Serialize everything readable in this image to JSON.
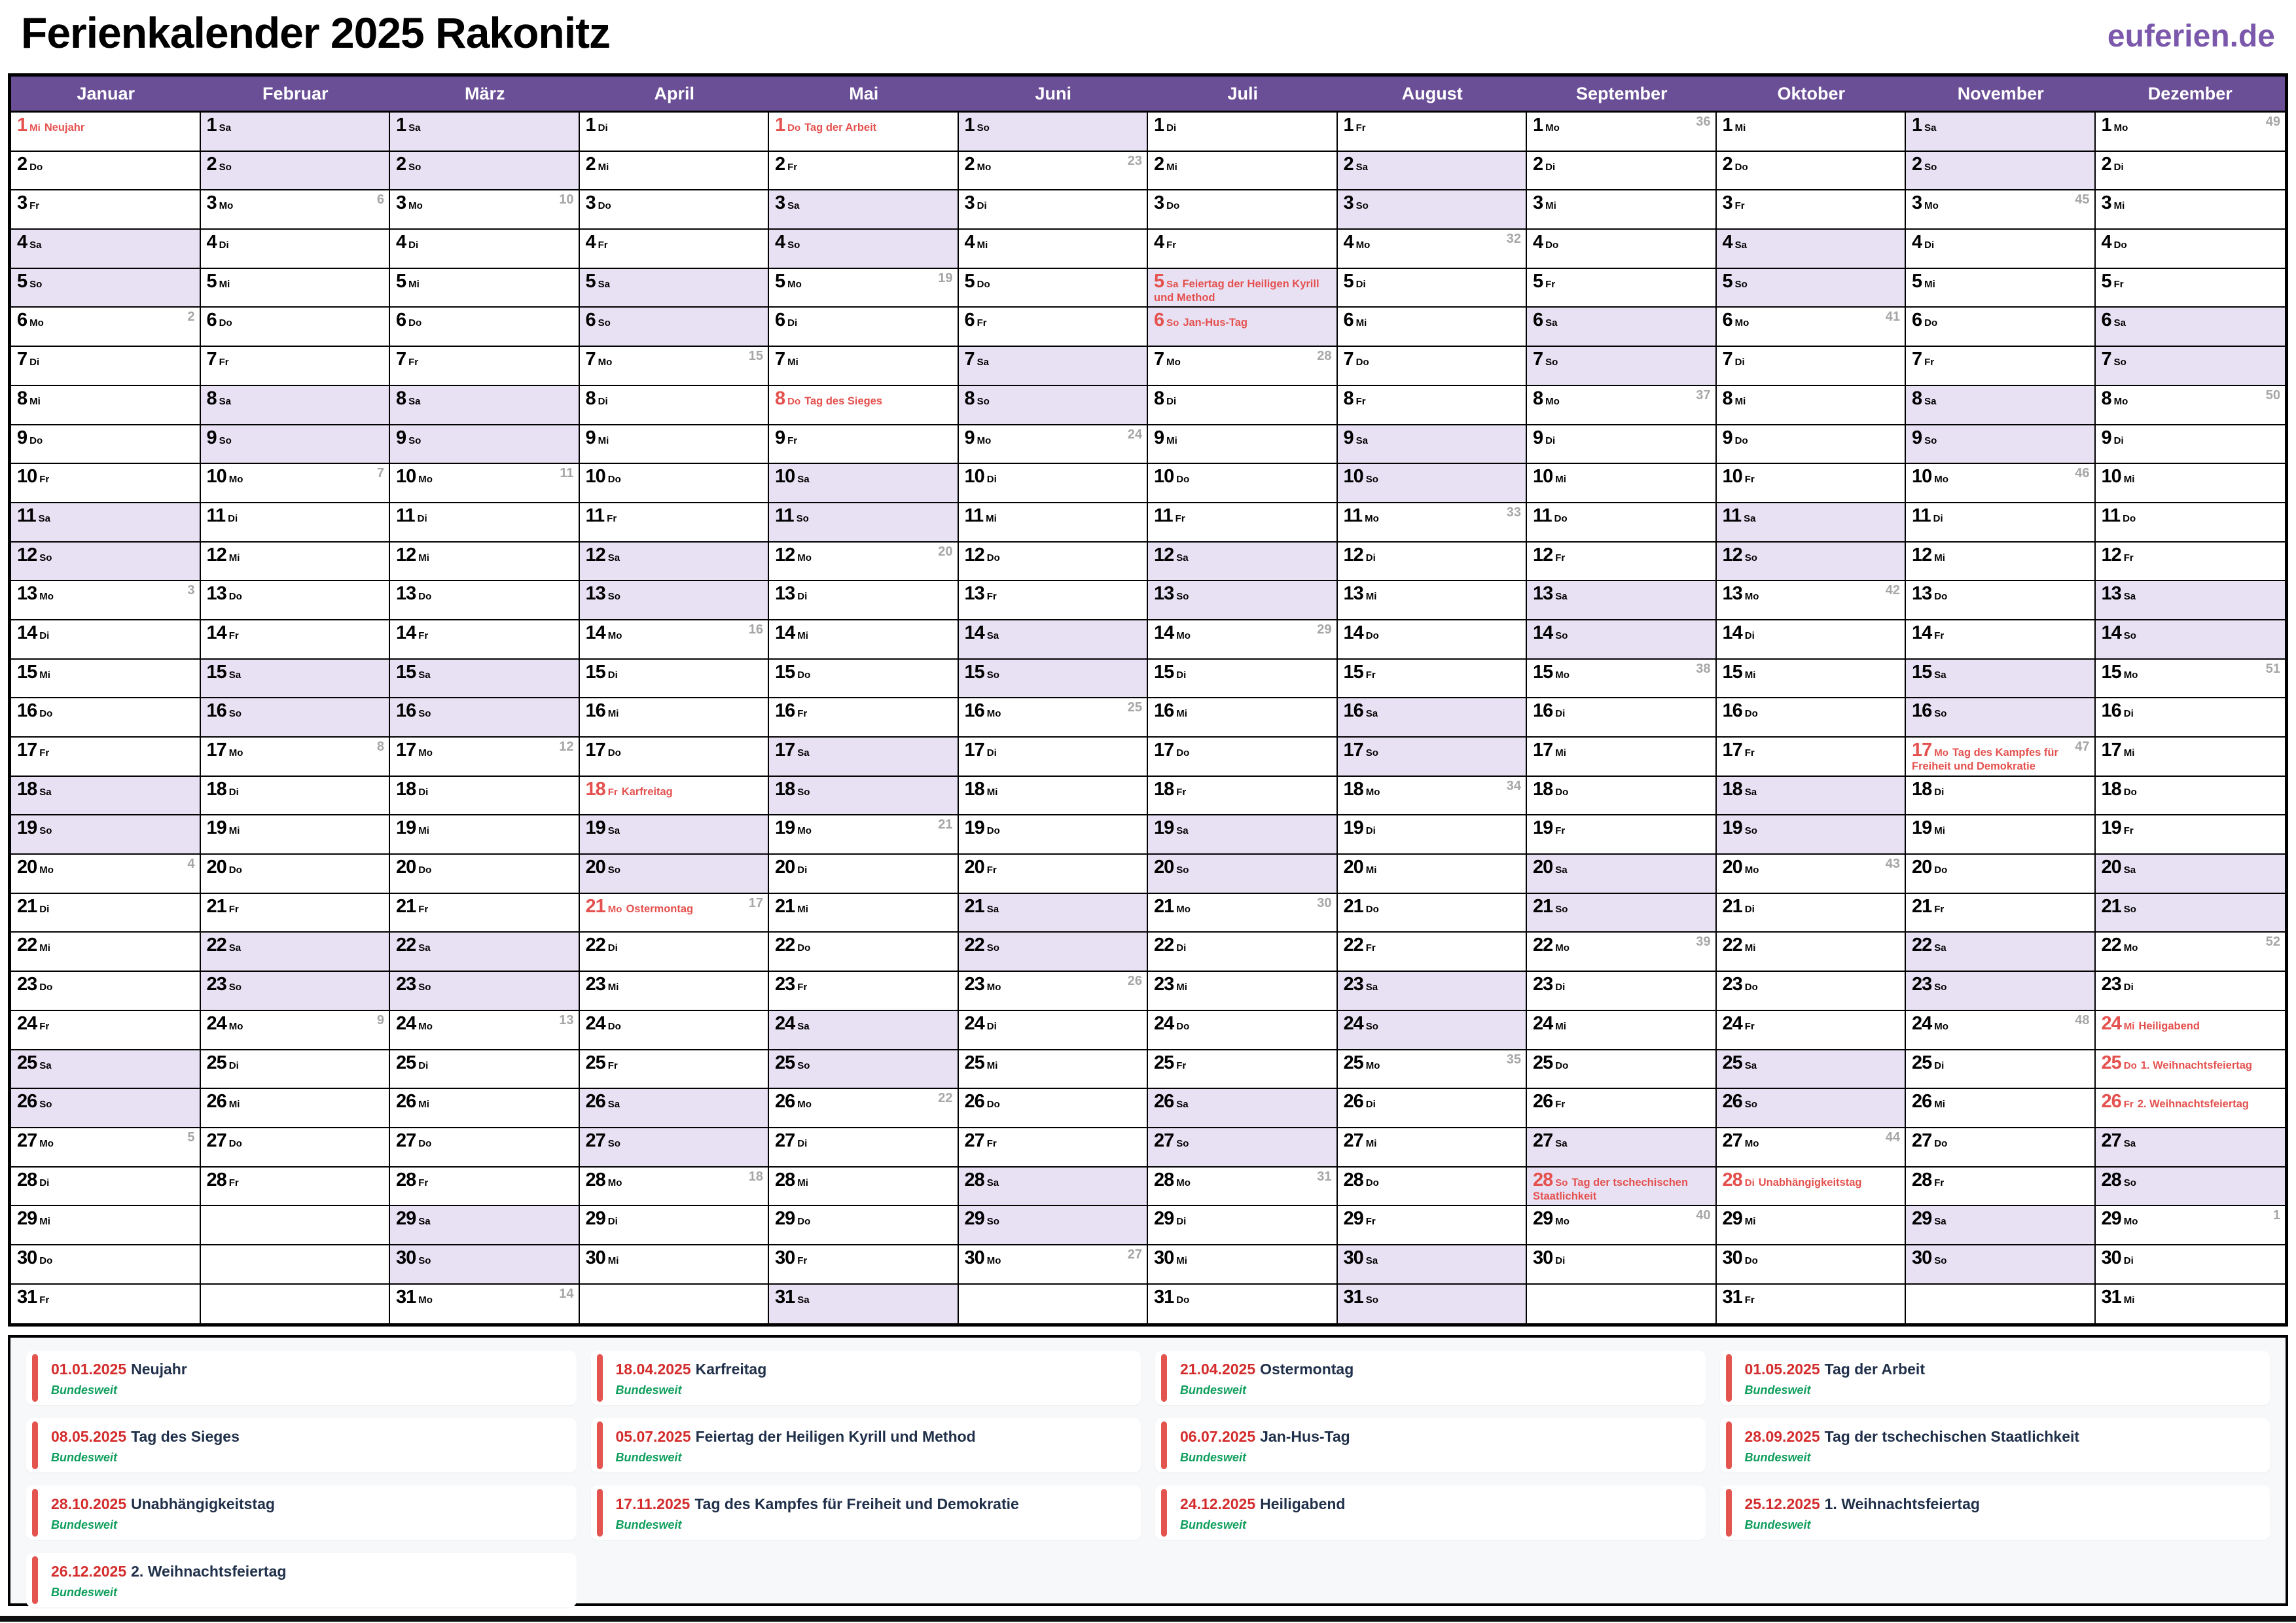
{
  "page": {
    "title": "Ferienkalender 2025 Rakonitz",
    "brand": "euferien.de"
  },
  "colors": {
    "header_purple": "#6a4e96",
    "weekend_lavender": "#e8e1f4",
    "holiday_red": "#e4514e",
    "legend_date_red": "#d42c2c",
    "legend_name_navy": "#20304a",
    "scope_green": "#0e9e5c",
    "brand_purple": "#7b58ac",
    "week_number_gray": "#a6a6a6",
    "legend_panel_gray": "#f7f8fa"
  },
  "weekday_abbr": [
    "Mo",
    "Di",
    "Mi",
    "Do",
    "Fr",
    "Sa",
    "So"
  ],
  "months": [
    {
      "name": "Januar",
      "days": 31,
      "start": 2,
      "weeks": {
        "6": "2",
        "13": "3",
        "20": "4",
        "27": "5"
      },
      "holidays": {
        "1": "Neujahr"
      }
    },
    {
      "name": "Februar",
      "days": 28,
      "start": 5,
      "weeks": {
        "3": "6",
        "10": "7",
        "17": "8",
        "24": "9"
      },
      "holidays": {}
    },
    {
      "name": "März",
      "days": 31,
      "start": 5,
      "weeks": {
        "3": "10",
        "10": "11",
        "17": "12",
        "24": "13",
        "31": "14"
      },
      "holidays": {}
    },
    {
      "name": "April",
      "days": 30,
      "start": 1,
      "weeks": {
        "7": "15",
        "14": "16",
        "21": "17",
        "28": "18"
      },
      "holidays": {
        "18": "Karfreitag",
        "21": "Ostermontag"
      }
    },
    {
      "name": "Mai",
      "days": 31,
      "start": 3,
      "weeks": {
        "5": "19",
        "12": "20",
        "19": "21",
        "26": "22"
      },
      "holidays": {
        "1": "Tag der Arbeit",
        "8": "Tag des Sieges"
      }
    },
    {
      "name": "Juni",
      "days": 30,
      "start": 6,
      "weeks": {
        "2": "23",
        "9": "24",
        "16": "25",
        "23": "26",
        "30": "27"
      },
      "holidays": {}
    },
    {
      "name": "Juli",
      "days": 31,
      "start": 1,
      "weeks": {
        "7": "28",
        "14": "29",
        "21": "30",
        "28": "31"
      },
      "holidays": {
        "5": "Feiertag der Heiligen Kyrill und Method",
        "6": "Jan-Hus-Tag"
      }
    },
    {
      "name": "August",
      "days": 31,
      "start": 4,
      "weeks": {
        "4": "32",
        "11": "33",
        "18": "34",
        "25": "35"
      },
      "holidays": {}
    },
    {
      "name": "September",
      "days": 30,
      "start": 0,
      "weeks": {
        "1": "36",
        "8": "37",
        "15": "38",
        "22": "39",
        "29": "40"
      },
      "holidays": {
        "28": "Tag der tschechischen Staatlichkeit"
      }
    },
    {
      "name": "Oktober",
      "days": 31,
      "start": 2,
      "weeks": {
        "6": "41",
        "13": "42",
        "20": "43",
        "27": "44"
      },
      "holidays": {
        "28": "Unabhängigkeitstag"
      }
    },
    {
      "name": "November",
      "days": 30,
      "start": 5,
      "weeks": {
        "3": "45",
        "10": "46",
        "17": "47",
        "24": "48"
      },
      "holidays": {
        "17": "Tag des Kampfes für Freiheit und Demokratie"
      }
    },
    {
      "name": "Dezember",
      "days": 31,
      "start": 0,
      "weeks": {
        "1": "49",
        "8": "50",
        "15": "51",
        "22": "52",
        "29": "1"
      },
      "holidays": {
        "24": "Heiligabend",
        "25": "1. Weihnachtsfeiertag",
        "26": "2. Weihnachtsfeiertag"
      }
    }
  ],
  "legend": [
    {
      "date": "01.01.2025",
      "name": "Neujahr",
      "scope": "Bundesweit"
    },
    {
      "date": "18.04.2025",
      "name": "Karfreitag",
      "scope": "Bundesweit"
    },
    {
      "date": "21.04.2025",
      "name": "Ostermontag",
      "scope": "Bundesweit"
    },
    {
      "date": "01.05.2025",
      "name": "Tag der Arbeit",
      "scope": "Bundesweit"
    },
    {
      "date": "08.05.2025",
      "name": "Tag des Sieges",
      "scope": "Bundesweit"
    },
    {
      "date": "05.07.2025",
      "name": "Feiertag der Heiligen Kyrill und Method",
      "scope": "Bundesweit"
    },
    {
      "date": "06.07.2025",
      "name": "Jan-Hus-Tag",
      "scope": "Bundesweit"
    },
    {
      "date": "28.09.2025",
      "name": "Tag der tschechischen Staatlichkeit",
      "scope": "Bundesweit"
    },
    {
      "date": "28.10.2025",
      "name": "Unabhängigkeitstag",
      "scope": "Bundesweit"
    },
    {
      "date": "17.11.2025",
      "name": "Tag des Kampfes für Freiheit und Demokratie",
      "scope": "Bundesweit"
    },
    {
      "date": "24.12.2025",
      "name": "Heiligabend",
      "scope": "Bundesweit"
    },
    {
      "date": "25.12.2025",
      "name": "1. Weihnachtsfeiertag",
      "scope": "Bundesweit"
    },
    {
      "date": "26.12.2025",
      "name": "2. Weihnachtsfeiertag",
      "scope": "Bundesweit"
    }
  ]
}
